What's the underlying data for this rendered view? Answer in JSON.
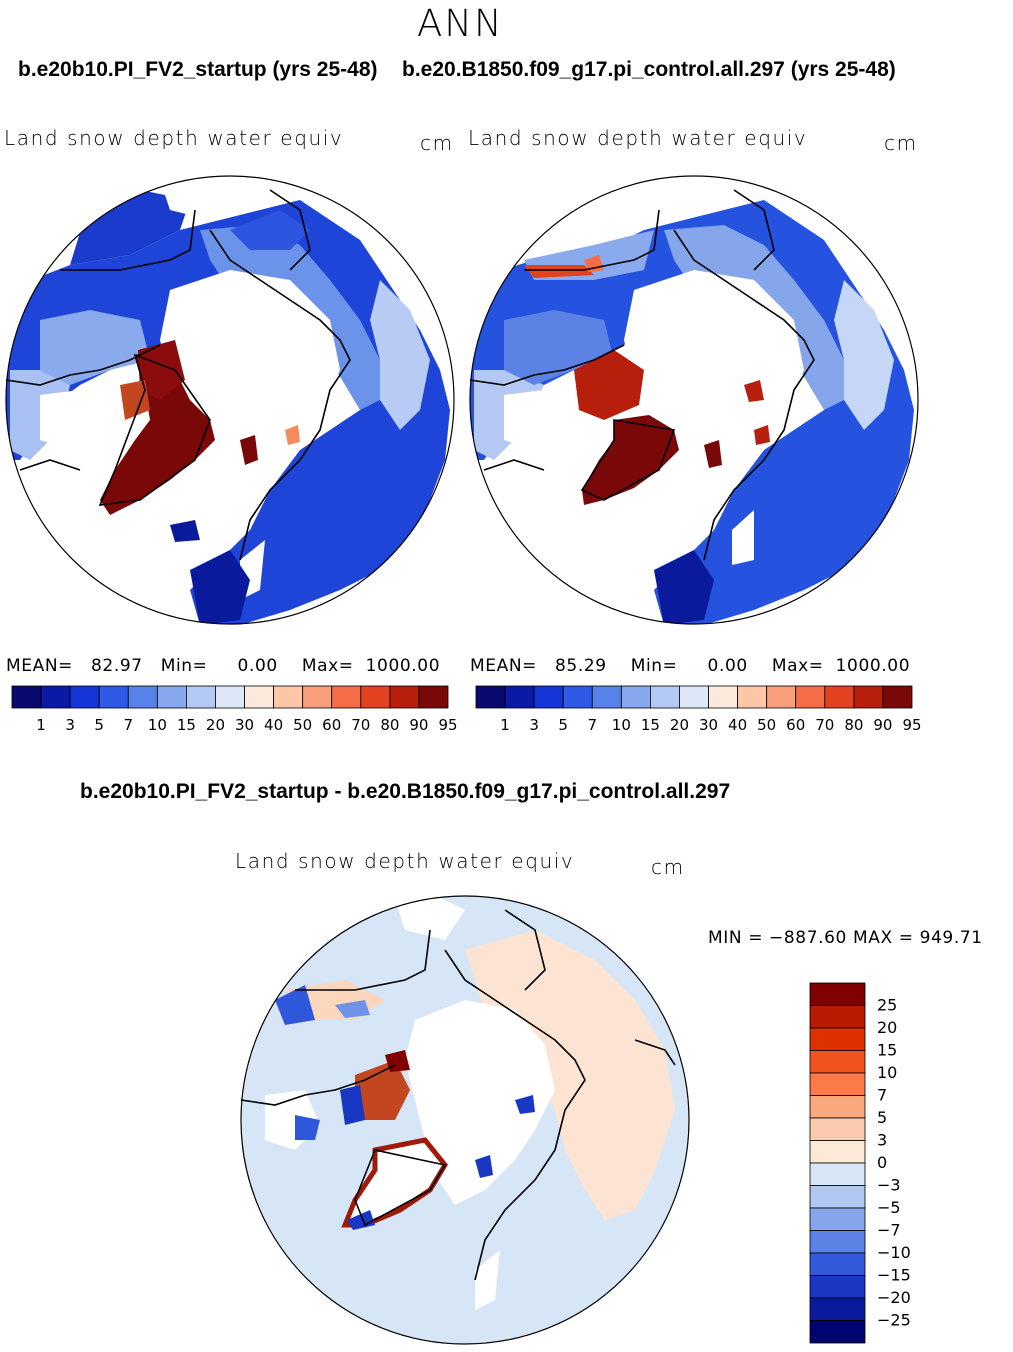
{
  "header": {
    "season": "ANN",
    "case_left_title": "b.e20b10.PI_FV2_startup (yrs 25-48)",
    "case_right_title": "b.e20.B1850.f09_g17.pi_control.all.297 (yrs 25-48)"
  },
  "panel_left": {
    "variable": "Land snow depth water equiv",
    "units": "cm",
    "stats": {
      "mean_label": "MEAN=",
      "mean": "82.97",
      "min_label": "Min=",
      "min": "0.00",
      "max_label": "Max=",
      "max": "1000.00"
    }
  },
  "panel_right": {
    "variable": "Land snow depth water equiv",
    "units": "cm",
    "stats": {
      "mean_label": "MEAN=",
      "mean": "85.29",
      "min_label": "Min=",
      "min": "0.00",
      "max_label": "Max=",
      "max": "1000.00"
    }
  },
  "colorbar_top": {
    "labels": [
      "1",
      "3",
      "5",
      "7",
      "10",
      "15",
      "20",
      "30",
      "40",
      "50",
      "60",
      "70",
      "80",
      "90",
      "95"
    ],
    "colors": [
      "#08086e",
      "#0a1aa6",
      "#1635d6",
      "#2e5ae6",
      "#5682ea",
      "#86a8ee",
      "#b4c8f4",
      "#dce8f8",
      "#fde9dc",
      "#fcc6a9",
      "#f99d7a",
      "#f56d47",
      "#e2421f",
      "#b51f0c",
      "#7a0808"
    ]
  },
  "diff": {
    "title": "b.e20b10.PI_FV2_startup - b.e20.B1850.f09_g17.pi_control.all.297",
    "variable": "Land snow depth water equiv",
    "units": "cm",
    "minmax": "MIN = −887.60 MAX = 949.71",
    "colorbar": {
      "labels": [
        "25",
        "20",
        "15",
        "10",
        "7",
        "5",
        "3",
        "0",
        "−3",
        "−5",
        "−7",
        "−10",
        "−15",
        "−20",
        "−25"
      ],
      "colors": [
        "#800000",
        "#b81a00",
        "#dd3200",
        "#f25420",
        "#fb7a47",
        "#fca97e",
        "#fccbad",
        "#fde9d8",
        "#d6e6f6",
        "#afc8f1",
        "#86a6ec",
        "#5d82e6",
        "#3359dc",
        "#1a37c4",
        "#0a1a9c",
        "#020470"
      ]
    }
  }
}
